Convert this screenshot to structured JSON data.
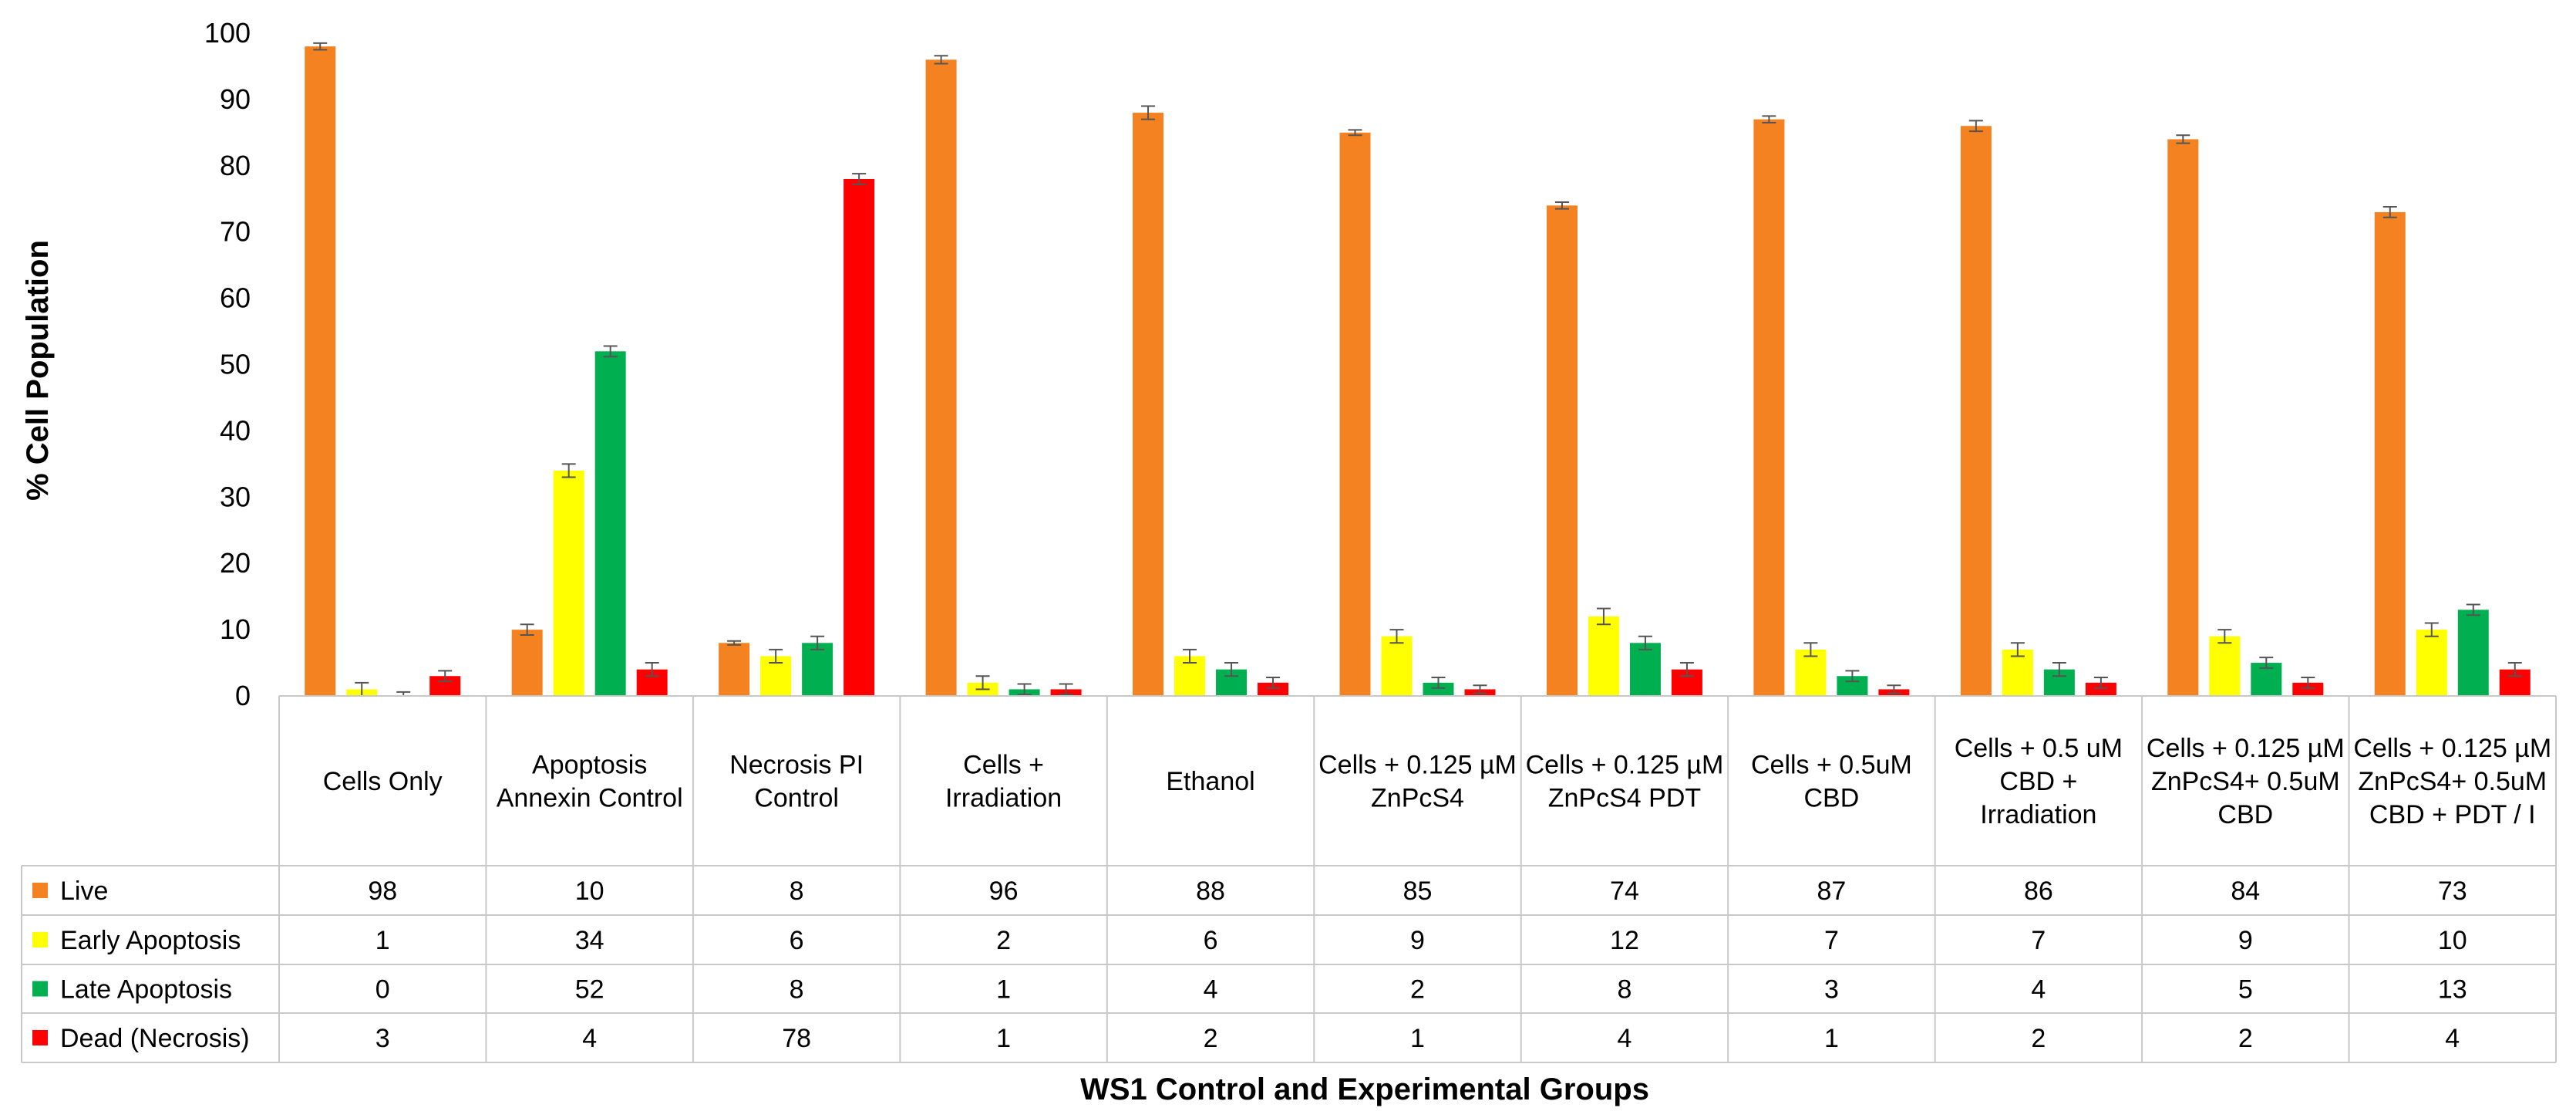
{
  "chart_data": {
    "type": "bar",
    "title": "",
    "ylabel": "% Cell Population",
    "xlabel": "WS1 Control and Experimental Groups",
    "ylim": [
      0,
      100
    ],
    "y_ticks": [
      0,
      10,
      20,
      30,
      40,
      50,
      60,
      70,
      80,
      90,
      100
    ],
    "grid": false,
    "legend": "data-table-left",
    "categories": [
      "Cells Only",
      "Apoptosis Annexin Control",
      "Necrosis PI Control",
      "Cells + Irradiation",
      "Ethanol",
      "Cells + 0.125 µM ZnPcS4",
      "Cells + 0.125 µM ZnPcS4 PDT",
      "Cells + 0.5uM CBD",
      "Cells + 0.5 uM CBD + Irradiation",
      "Cells + 0.125 µM ZnPcS4+ 0.5uM CBD",
      "Cells + 0.125 µM ZnPcS4+ 0.5uM CBD + PDT / I"
    ],
    "series": [
      {
        "name": "Live",
        "color": "#F58220",
        "values": [
          98,
          10,
          8,
          96,
          88,
          85,
          74,
          87,
          86,
          84,
          73
        ],
        "errors": [
          0.5,
          0.8,
          0.3,
          0.6,
          1,
          0.4,
          0.5,
          0.5,
          0.8,
          0.6,
          0.8
        ]
      },
      {
        "name": "Early Apoptosis",
        "color": "#FFFF00",
        "values": [
          1,
          34,
          6,
          2,
          6,
          9,
          12,
          7,
          7,
          9,
          10
        ],
        "errors": [
          1,
          1,
          1,
          1,
          1,
          1,
          1.2,
          1,
          1,
          1,
          1
        ]
      },
      {
        "name": "Late Apoptosis",
        "color": "#00B050",
        "values": [
          0,
          52,
          8,
          1,
          4,
          2,
          8,
          3,
          4,
          5,
          13
        ],
        "errors": [
          0.6,
          0.8,
          1,
          0.8,
          1,
          0.8,
          1,
          0.8,
          1,
          0.8,
          0.8
        ]
      },
      {
        "name": "Dead (Necrosis)",
        "color": "#FF0000",
        "values": [
          3,
          4,
          78,
          1,
          2,
          1,
          4,
          1,
          2,
          2,
          4
        ],
        "errors": [
          0.8,
          1,
          0.8,
          0.8,
          0.8,
          0.6,
          1,
          0.6,
          0.8,
          0.8,
          1
        ]
      }
    ]
  }
}
